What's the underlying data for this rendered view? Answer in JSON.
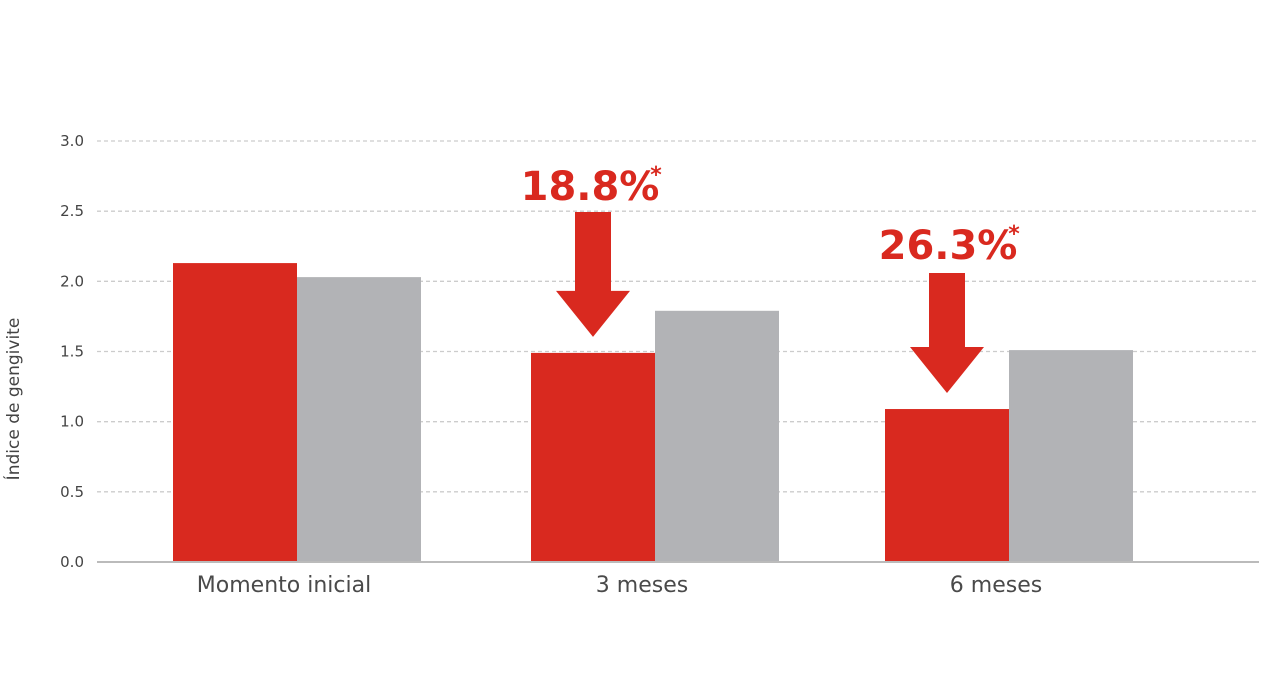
{
  "chart_data": {
    "type": "bar",
    "title": "",
    "xlabel": "",
    "ylabel": "Índice de gengivite",
    "ylim": [
      0,
      3.0
    ],
    "yticks": [
      "0.0",
      "0.5",
      "1.0",
      "1.5",
      "2.0",
      "2.5",
      "3.0"
    ],
    "grid": true,
    "categories": [
      "Momento inicial",
      "3 meses",
      "6 meses"
    ],
    "series": [
      {
        "values": [
          2.13,
          1.49,
          1.09
        ],
        "color": "#d9291f"
      },
      {
        "values": [
          2.03,
          1.79,
          1.51
        ],
        "color": "#b2b3b6"
      }
    ],
    "annotations": [
      {
        "category_index": 1,
        "text": "18.8%",
        "marker": "*",
        "color": "#d9291f"
      },
      {
        "category_index": 2,
        "text": "26.3%",
        "marker": "*",
        "color": "#d9291f"
      }
    ],
    "colors": {
      "grid": "#cccccc",
      "axis": "#bbbbbb"
    }
  }
}
